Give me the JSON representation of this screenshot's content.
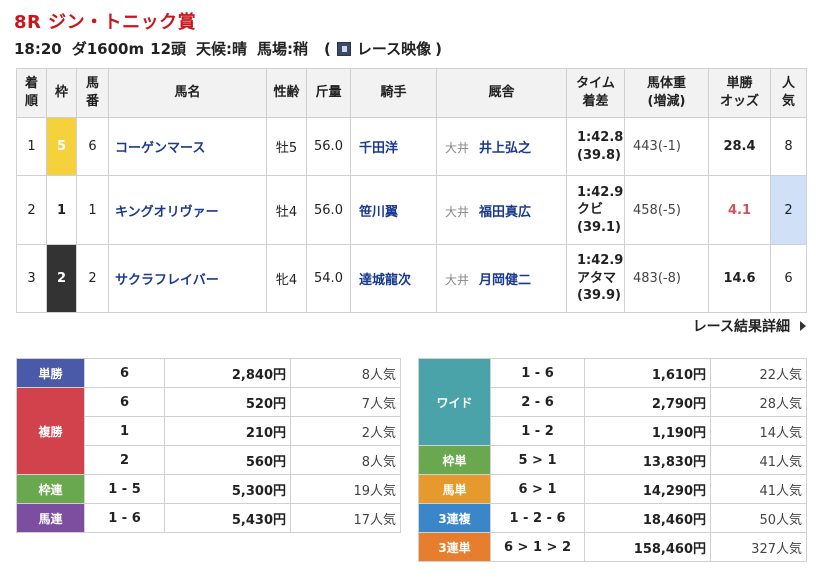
{
  "race": {
    "title": "8R ジン・トニック賞",
    "time": "18:20",
    "course": "ダ1600m",
    "heads": "12頭",
    "weather": "天候:晴",
    "track": "馬場:稍",
    "video_open": "(",
    "video_label": "レース映像",
    "video_close": ")"
  },
  "table": {
    "headers": {
      "rank": [
        "着",
        "順"
      ],
      "waku": "枠",
      "num": [
        "馬",
        "番"
      ],
      "name": "馬名",
      "sexage": "性齢",
      "weight_carried": "斤量",
      "jockey": "騎手",
      "trainer": "厩舎",
      "time": [
        "タイム",
        "着差"
      ],
      "body": [
        "馬体重",
        "(増減)"
      ],
      "odds": [
        "単勝",
        "オッズ"
      ],
      "pop": [
        "人",
        "気"
      ]
    },
    "rows": [
      {
        "rank": "1",
        "waku": "5",
        "num": "6",
        "name": "コーゲンマース",
        "sexage": "牡5",
        "kinryo": "56.0",
        "jockey": "千田洋",
        "region": "大井",
        "trainer": "井上弘之",
        "time": "1:42.8",
        "margin": "",
        "last": "(39.8)",
        "body": "443(-1)",
        "odds": "28.4",
        "pop": "8"
      },
      {
        "rank": "2",
        "waku": "1",
        "num": "1",
        "name": "キングオリヴァー",
        "sexage": "牡4",
        "kinryo": "56.0",
        "jockey": "笹川翼",
        "region": "大井",
        "trainer": "福田真広",
        "time": "1:42.9",
        "margin": "クビ",
        "last": "(39.1)",
        "body": "458(-5)",
        "odds": "4.1",
        "pop": "2"
      },
      {
        "rank": "3",
        "waku": "2",
        "num": "2",
        "name": "サクラフレイバー",
        "sexage": "牝4",
        "kinryo": "54.0",
        "jockey": "達城龍次",
        "region": "大井",
        "trainer": "月岡健二",
        "time": "1:42.9",
        "margin": "アタマ",
        "last": "(39.9)",
        "body": "483(-8)",
        "odds": "14.6",
        "pop": "6"
      }
    ]
  },
  "detail_link": "レース結果詳細",
  "payouts": {
    "tansho": {
      "label": "単勝",
      "rows": [
        {
          "c": "6",
          "a": "2,840円",
          "n": "8人気"
        }
      ]
    },
    "fukusho": {
      "label": "複勝",
      "rows": [
        {
          "c": "6",
          "a": "520円",
          "n": "7人気"
        },
        {
          "c": "1",
          "a": "210円",
          "n": "2人気"
        },
        {
          "c": "2",
          "a": "560円",
          "n": "8人気"
        }
      ]
    },
    "wakuren": {
      "label": "枠連",
      "rows": [
        {
          "c": "1 - 5",
          "a": "5,300円",
          "n": "19人気"
        }
      ]
    },
    "umaren": {
      "label": "馬連",
      "rows": [
        {
          "c": "1 - 6",
          "a": "5,430円",
          "n": "17人気"
        }
      ]
    },
    "wide": {
      "label": "ワイド",
      "rows": [
        {
          "c": "1 - 6",
          "a": "1,610円",
          "n": "22人気"
        },
        {
          "c": "2 - 6",
          "a": "2,790円",
          "n": "28人気"
        },
        {
          "c": "1 - 2",
          "a": "1,190円",
          "n": "14人気"
        }
      ]
    },
    "wakutan": {
      "label": "枠単",
      "rows": [
        {
          "c": "5 > 1",
          "a": "13,830円",
          "n": "41人気"
        }
      ]
    },
    "umatan": {
      "label": "馬単",
      "rows": [
        {
          "c": "6 > 1",
          "a": "14,290円",
          "n": "41人気"
        }
      ]
    },
    "sanrenpuku": {
      "label": "3連複",
      "rows": [
        {
          "c": "1 - 2 - 6",
          "a": "18,460円",
          "n": "50人気"
        }
      ]
    },
    "sanrentan": {
      "label": "3連単",
      "rows": [
        {
          "c": "6 > 1 > 2",
          "a": "158,460円",
          "n": "327人気"
        }
      ]
    }
  },
  "colors": {
    "title_red": "#c8161d",
    "link_blue": "#1a3a8f",
    "waku": {
      "1": {
        "bg": "#ffffff",
        "fg": "#222222"
      },
      "2": {
        "bg": "#333333",
        "fg": "#ffffff"
      },
      "5": {
        "bg": "#f5d13b",
        "fg": "#ffffff"
      }
    },
    "labels": {
      "tansho": "#4b5aa8",
      "fukusho": "#d2424c",
      "wakuren": "#6aa84f",
      "umaren": "#7b4ea0",
      "wide": "#4aa3a8",
      "wakutan": "#6aa84f",
      "umatan": "#e69a2e",
      "sanrenpuku": "#3a86c8",
      "sanrentan": "#e67e2e"
    }
  }
}
